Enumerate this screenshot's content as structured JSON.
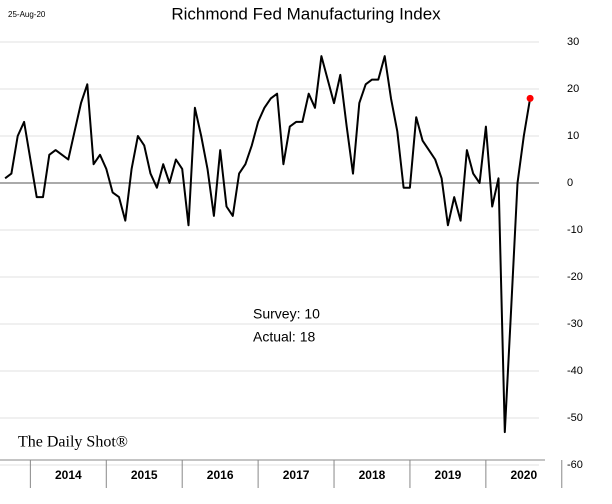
{
  "chart_data": {
    "type": "line",
    "title": "Richmond Fed Manufacturing Index",
    "date_label": "25-Aug-20",
    "annotations": [
      "Survey: 10",
      "Actual:  18"
    ],
    "source": "The Daily Shot®",
    "x": [
      2013.667,
      2013.75,
      2013.833,
      2013.917,
      2014.0,
      2014.083,
      2014.167,
      2014.25,
      2014.333,
      2014.417,
      2014.5,
      2014.583,
      2014.667,
      2014.75,
      2014.833,
      2014.917,
      2015.0,
      2015.083,
      2015.167,
      2015.25,
      2015.333,
      2015.417,
      2015.5,
      2015.583,
      2015.667,
      2015.75,
      2015.833,
      2015.917,
      2016.0,
      2016.083,
      2016.167,
      2016.25,
      2016.333,
      2016.417,
      2016.5,
      2016.583,
      2016.667,
      2016.75,
      2016.833,
      2016.917,
      2017.0,
      2017.083,
      2017.167,
      2017.25,
      2017.333,
      2017.417,
      2017.5,
      2017.583,
      2017.667,
      2017.75,
      2017.833,
      2017.917,
      2018.0,
      2018.083,
      2018.167,
      2018.25,
      2018.333,
      2018.417,
      2018.5,
      2018.583,
      2018.667,
      2018.75,
      2018.833,
      2018.917,
      2019.0,
      2019.083,
      2019.167,
      2019.25,
      2019.333,
      2019.417,
      2019.5,
      2019.583,
      2019.667,
      2019.75,
      2019.833,
      2019.917,
      2020.0,
      2020.083,
      2020.167,
      2020.25,
      2020.333,
      2020.417,
      2020.5,
      2020.583
    ],
    "series": [
      {
        "color": "#000000",
        "last_point_color": "#ff0000",
        "values": [
          1,
          2,
          10,
          13,
          5,
          -3,
          -3,
          6,
          7,
          6,
          5,
          11,
          17,
          21,
          4,
          6,
          3,
          -2,
          -3,
          -8,
          3,
          10,
          8,
          2,
          -1,
          4,
          0,
          5,
          3,
          -9,
          16,
          10,
          3,
          -7,
          7,
          -5,
          -7,
          2,
          4,
          8,
          13,
          16,
          18,
          19,
          4,
          12,
          13,
          13,
          19,
          16,
          27,
          22,
          17,
          23,
          12,
          2,
          17,
          21,
          22,
          22,
          27,
          18,
          11,
          -1,
          -1,
          14,
          9,
          7,
          5,
          1,
          -9,
          -3,
          -8,
          7,
          2,
          0,
          12,
          -5,
          1,
          -53,
          -27,
          0,
          10,
          18
        ]
      }
    ],
    "xlim": [
      2013.6,
      2020.7
    ],
    "xticks": [
      {
        "value": 2014.5,
        "label": "2014"
      },
      {
        "value": 2015.5,
        "label": "2015"
      },
      {
        "value": 2016.5,
        "label": "2016"
      },
      {
        "value": 2017.5,
        "label": "2017"
      },
      {
        "value": 2018.5,
        "label": "2018"
      },
      {
        "value": 2019.5,
        "label": "2019"
      },
      {
        "value": 2020.5,
        "label": "2020"
      }
    ],
    "xdividers": [
      2014,
      2015,
      2016,
      2017,
      2018,
      2019,
      2020,
      2021
    ],
    "ylim": [
      -60,
      30
    ],
    "yticks": [
      -60,
      -50,
      -40,
      -30,
      -20,
      -10,
      0,
      10,
      20,
      30
    ],
    "grid": true
  }
}
